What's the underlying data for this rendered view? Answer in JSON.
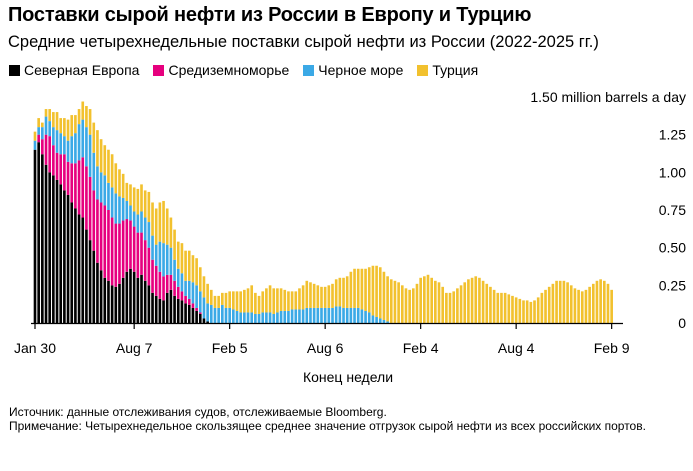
{
  "title": "Поставки сырой нефти из России в Европу и Турцию",
  "subtitle": "Средние четырехнедельные поставки сырой нефти из России (2022-2025 гг.)",
  "source": "Источник: данные отслеживания судов, отслеживаемые Bloomberg.",
  "note": "Примечание: Четырехнедельное скользящее среднее значение отгрузок сырой нефти из всех российских портов.",
  "colors": {
    "northern_europe": "#000000",
    "mediterranean": "#e6007e",
    "black_sea": "#3ba9e6",
    "turkey": "#f2c12e",
    "axis": "#000000",
    "grid": "#dddddd"
  },
  "chart_data": {
    "type": "bar",
    "stacked": true,
    "title": "Поставки сырой нефти из России в Европу и Турцию",
    "subtitle": "Средние четырехнедельные поставки сырой нефти из России (2022-2025 гг.)",
    "xlabel": "Конец недели",
    "ylabel": "million barrels a day",
    "ylim": [
      0,
      1.5
    ],
    "y_ticks": [
      "0",
      "0.25",
      "0.50",
      "0.75",
      "1.00",
      "1.25",
      "1.50 million barrels a day"
    ],
    "y_tick_values": [
      0,
      0.25,
      0.5,
      0.75,
      1.0,
      1.25,
      1.5
    ],
    "x_ticks": [
      "Jan 30",
      "Aug 7",
      "Feb 5",
      "Aug 6",
      "Feb 4",
      "Aug 4",
      "Feb 9"
    ],
    "x_tick_week_index": [
      0,
      27,
      53,
      79,
      105,
      131,
      157
    ],
    "legend": [
      "Северная Европа",
      "Средиземноморье",
      "Черное море",
      "Турция"
    ],
    "legend_position": "top-left",
    "series": [
      {
        "name": "Северная Европа",
        "values": [
          1.15,
          1.2,
          1.12,
          1.05,
          1.0,
          0.98,
          0.95,
          0.92,
          0.88,
          0.85,
          0.8,
          0.76,
          0.72,
          0.7,
          0.62,
          0.55,
          0.48,
          0.4,
          0.35,
          0.3,
          0.28,
          0.25,
          0.24,
          0.26,
          0.3,
          0.34,
          0.36,
          0.34,
          0.3,
          0.32,
          0.28,
          0.25,
          0.2,
          0.18,
          0.16,
          0.15,
          0.2,
          0.22,
          0.18,
          0.16,
          0.15,
          0.13,
          0.12,
          0.1,
          0.08,
          0.06,
          0.03,
          0.01,
          0.0,
          0.0,
          0.0,
          0.0,
          0.0,
          0.0,
          0.0,
          0.0,
          0.0,
          0.0,
          0.0,
          0.0,
          0.0,
          0.0,
          0.0,
          0.0,
          0.0,
          0.0,
          0.0,
          0.0,
          0.0,
          0.0,
          0.0,
          0.0,
          0.0,
          0.0,
          0.0,
          0.0,
          0.0,
          0.0,
          0.0,
          0.0,
          0.0,
          0.0,
          0.0,
          0.0,
          0.0,
          0.0,
          0.0,
          0.0,
          0.0,
          0.0,
          0.0,
          0.0,
          0.0,
          0.0,
          0.0,
          0.0,
          0.0,
          0.0,
          0.0,
          0.0,
          0.0,
          0.0,
          0.0,
          0.0,
          0.0,
          0.0,
          0.0,
          0.0,
          0.0,
          0.0,
          0.0,
          0.0,
          0.0,
          0.0,
          0.0,
          0.0,
          0.0,
          0.0,
          0.0,
          0.0,
          0.0,
          0.0,
          0.0,
          0.0,
          0.0,
          0.0,
          0.0,
          0.0,
          0.0,
          0.0,
          0.0,
          0.0,
          0.0,
          0.0,
          0.0,
          0.0,
          0.0,
          0.0,
          0.0,
          0.0,
          0.0,
          0.0,
          0.0,
          0.0,
          0.0,
          0.0,
          0.0,
          0.0,
          0.0,
          0.0,
          0.0,
          0.0,
          0.0,
          0.0,
          0.0,
          0.0,
          0.0,
          0.0,
          0.0,
          0.0
        ]
      },
      {
        "name": "Средиземноморье",
        "values": [
          0.0,
          0.05,
          0.1,
          0.2,
          0.24,
          0.2,
          0.18,
          0.2,
          0.24,
          0.22,
          0.26,
          0.3,
          0.36,
          0.4,
          0.42,
          0.42,
          0.4,
          0.42,
          0.45,
          0.48,
          0.47,
          0.45,
          0.42,
          0.4,
          0.38,
          0.35,
          0.32,
          0.3,
          0.3,
          0.28,
          0.27,
          0.25,
          0.22,
          0.2,
          0.18,
          0.16,
          0.12,
          0.1,
          0.1,
          0.08,
          0.06,
          0.05,
          0.04,
          0.03,
          0.02,
          0.01,
          0.0,
          0.0,
          0.0,
          0.0,
          0.0,
          0.0,
          0.0,
          0.0,
          0.0,
          0.0,
          0.0,
          0.0,
          0.0,
          0.0,
          0.0,
          0.0,
          0.0,
          0.0,
          0.0,
          0.0,
          0.0,
          0.0,
          0.0,
          0.0,
          0.0,
          0.0,
          0.0,
          0.0,
          0.0,
          0.0,
          0.0,
          0.0,
          0.0,
          0.0,
          0.0,
          0.0,
          0.0,
          0.0,
          0.0,
          0.0,
          0.0,
          0.0,
          0.0,
          0.0,
          0.0,
          0.0,
          0.0,
          0.0,
          0.0,
          0.0,
          0.0,
          0.0,
          0.0,
          0.0,
          0.0,
          0.0,
          0.0,
          0.0,
          0.0,
          0.0,
          0.0,
          0.0,
          0.0,
          0.0,
          0.0,
          0.0,
          0.0,
          0.0,
          0.0,
          0.0,
          0.0,
          0.0,
          0.0,
          0.0,
          0.0,
          0.0,
          0.0,
          0.0,
          0.0,
          0.0,
          0.0,
          0.0,
          0.0,
          0.0,
          0.0,
          0.0,
          0.0,
          0.0,
          0.0,
          0.0,
          0.0,
          0.0,
          0.0,
          0.0,
          0.0,
          0.0,
          0.0,
          0.0,
          0.0,
          0.0,
          0.0,
          0.0,
          0.0,
          0.0,
          0.0,
          0.0,
          0.0,
          0.0,
          0.0,
          0.0,
          0.0,
          0.0
        ]
      },
      {
        "name": "Черное море",
        "values": [
          0.06,
          0.05,
          0.08,
          0.12,
          0.1,
          0.12,
          0.15,
          0.14,
          0.12,
          0.14,
          0.18,
          0.2,
          0.24,
          0.25,
          0.26,
          0.28,
          0.25,
          0.22,
          0.2,
          0.2,
          0.18,
          0.2,
          0.2,
          0.18,
          0.15,
          0.12,
          0.1,
          0.1,
          0.12,
          0.14,
          0.15,
          0.17,
          0.16,
          0.14,
          0.2,
          0.22,
          0.2,
          0.18,
          0.14,
          0.12,
          0.12,
          0.1,
          0.12,
          0.14,
          0.15,
          0.14,
          0.14,
          0.12,
          0.12,
          0.1,
          0.1,
          0.12,
          0.1,
          0.1,
          0.09,
          0.08,
          0.07,
          0.07,
          0.07,
          0.07,
          0.06,
          0.06,
          0.07,
          0.07,
          0.07,
          0.06,
          0.07,
          0.08,
          0.08,
          0.08,
          0.09,
          0.09,
          0.09,
          0.09,
          0.1,
          0.1,
          0.1,
          0.1,
          0.1,
          0.1,
          0.1,
          0.1,
          0.11,
          0.11,
          0.1,
          0.1,
          0.1,
          0.1,
          0.1,
          0.09,
          0.08,
          0.07,
          0.05,
          0.04,
          0.03,
          0.02,
          0.01,
          0.0,
          0.0,
          0.0,
          0.0,
          0.0,
          0.0,
          0.0,
          0.0,
          0.0,
          0.0,
          0.0,
          0.0,
          0.0,
          0.0,
          0.0,
          0.0,
          0.0,
          0.0,
          0.0,
          0.0,
          0.0,
          0.0,
          0.0,
          0.0,
          0.0,
          0.0,
          0.0,
          0.0,
          0.0,
          0.0,
          0.0,
          0.0,
          0.0,
          0.0,
          0.0,
          0.0,
          0.0,
          0.0,
          0.0,
          0.0,
          0.0,
          0.0,
          0.0,
          0.0,
          0.0,
          0.0,
          0.0,
          0.0,
          0.0,
          0.0,
          0.0,
          0.0,
          0.0,
          0.0,
          0.0,
          0.0,
          0.0,
          0.0,
          0.0,
          0.0,
          0.0
        ]
      },
      {
        "name": "Турция",
        "values": [
          0.06,
          0.06,
          0.03,
          0.05,
          0.08,
          0.1,
          0.12,
          0.1,
          0.12,
          0.14,
          0.14,
          0.12,
          0.1,
          0.12,
          0.14,
          0.17,
          0.2,
          0.24,
          0.22,
          0.2,
          0.22,
          0.22,
          0.2,
          0.18,
          0.16,
          0.12,
          0.14,
          0.16,
          0.17,
          0.18,
          0.18,
          0.2,
          0.22,
          0.24,
          0.26,
          0.28,
          0.24,
          0.2,
          0.2,
          0.18,
          0.2,
          0.2,
          0.2,
          0.18,
          0.18,
          0.16,
          0.14,
          0.13,
          0.1,
          0.08,
          0.08,
          0.08,
          0.1,
          0.11,
          0.12,
          0.13,
          0.14,
          0.15,
          0.16,
          0.18,
          0.14,
          0.12,
          0.14,
          0.16,
          0.18,
          0.17,
          0.16,
          0.15,
          0.14,
          0.13,
          0.12,
          0.12,
          0.14,
          0.16,
          0.18,
          0.17,
          0.16,
          0.15,
          0.14,
          0.14,
          0.15,
          0.16,
          0.18,
          0.19,
          0.2,
          0.21,
          0.24,
          0.26,
          0.26,
          0.27,
          0.28,
          0.3,
          0.33,
          0.34,
          0.34,
          0.32,
          0.3,
          0.29,
          0.28,
          0.27,
          0.25,
          0.23,
          0.22,
          0.23,
          0.26,
          0.3,
          0.31,
          0.32,
          0.3,
          0.28,
          0.27,
          0.24,
          0.2,
          0.2,
          0.21,
          0.23,
          0.25,
          0.27,
          0.29,
          0.3,
          0.31,
          0.3,
          0.28,
          0.26,
          0.24,
          0.22,
          0.2,
          0.2,
          0.2,
          0.19,
          0.18,
          0.17,
          0.16,
          0.15,
          0.15,
          0.14,
          0.15,
          0.17,
          0.2,
          0.22,
          0.24,
          0.26,
          0.28,
          0.28,
          0.28,
          0.27,
          0.25,
          0.23,
          0.22,
          0.21,
          0.22,
          0.24,
          0.26,
          0.28,
          0.29,
          0.28,
          0.26,
          0.22
        ]
      }
    ]
  }
}
